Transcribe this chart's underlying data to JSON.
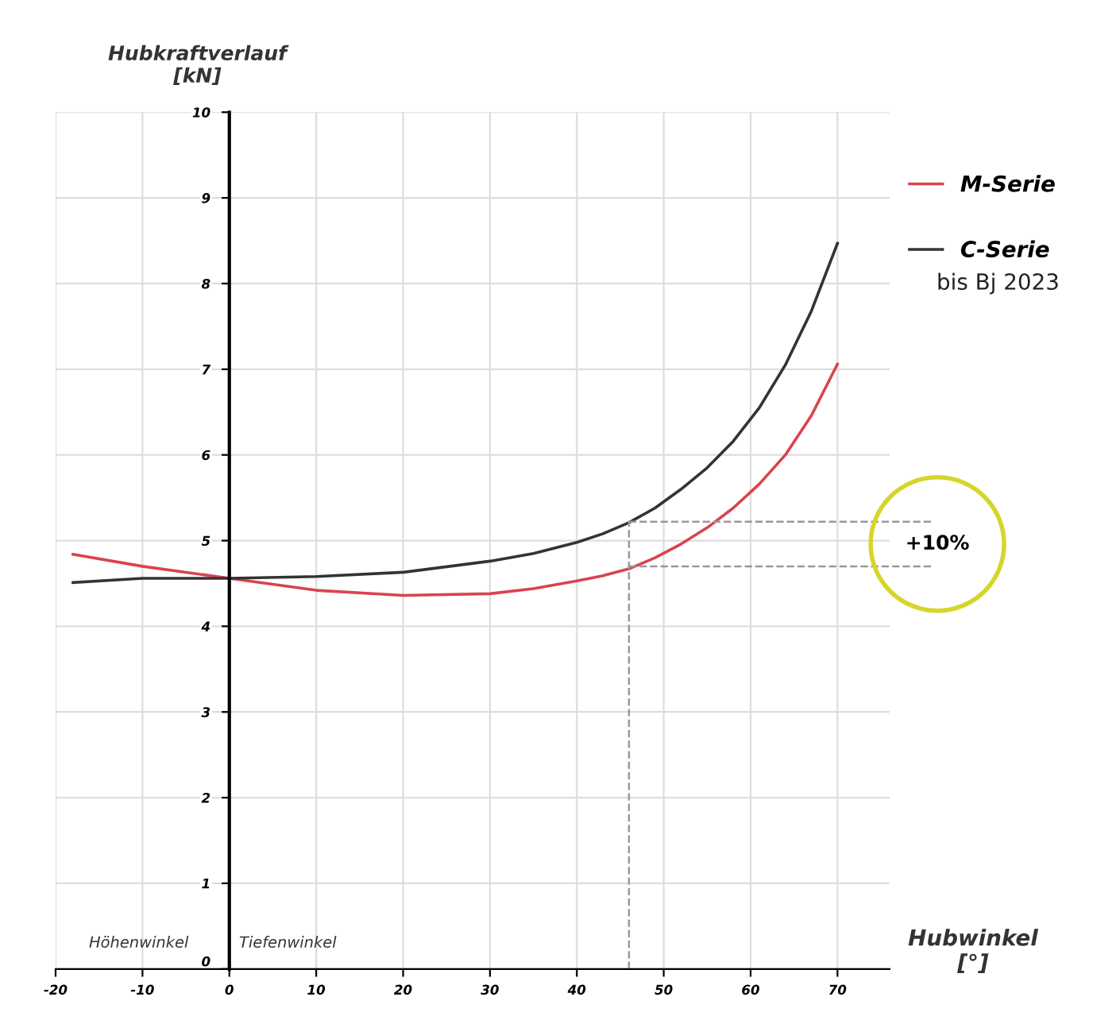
{
  "chart_data": {
    "type": "line",
    "ylabel": "Hubkraftverlauf\n[kN]",
    "xlabel": "Hubwinkel\n[°]",
    "xlim": [
      -20,
      76
    ],
    "xticks": [
      -20,
      -10,
      0,
      10,
      20,
      30,
      40,
      50,
      60,
      70
    ],
    "ylim": [
      0,
      10
    ],
    "yticks": [
      0,
      1,
      2,
      3,
      4,
      5,
      6,
      7,
      8,
      9,
      10
    ],
    "grid": true,
    "legend": "top right",
    "line_style": "solid",
    "marker": "none",
    "series": [
      {
        "name": "M-Serie",
        "color": "#d9434f",
        "x": [
          -18,
          -10,
          0,
          10,
          20,
          30,
          35,
          40,
          43,
          46,
          49,
          52,
          55,
          58,
          61,
          64,
          67,
          70
        ],
        "values": [
          4.84,
          4.7,
          4.56,
          4.42,
          4.36,
          4.38,
          4.44,
          4.53,
          4.59,
          4.67,
          4.8,
          4.96,
          5.15,
          5.38,
          5.66,
          6.0,
          6.46,
          7.06
        ]
      },
      {
        "name": "C-Serie",
        "color": "#333333",
        "x": [
          -18,
          -10,
          0,
          10,
          20,
          30,
          35,
          40,
          43,
          46,
          49,
          52,
          55,
          58,
          61,
          64,
          67,
          70
        ],
        "values": [
          4.51,
          4.56,
          4.56,
          4.58,
          4.63,
          4.76,
          4.85,
          4.98,
          5.08,
          5.21,
          5.38,
          5.6,
          5.85,
          6.16,
          6.55,
          7.05,
          7.68,
          8.47
        ]
      }
    ],
    "ref_lines": [
      {
        "axis": "x",
        "value": 46,
        "line_style": "dashed",
        "color": "#999999"
      },
      {
        "axis": "y",
        "value": 5.22,
        "line_style": "dashed",
        "color": "#999999"
      },
      {
        "axis": "y",
        "value": 4.7,
        "line_style": "dashed",
        "color": "#999999"
      }
    ],
    "annotations": [
      "bis Bj 2023",
      "+10%",
      "Höhenwinkel",
      "Tiefenwinkel"
    ]
  }
}
